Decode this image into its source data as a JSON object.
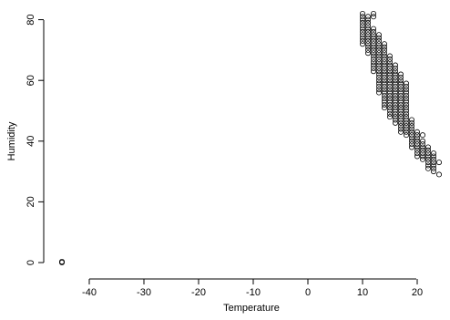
{
  "chart_data": {
    "type": "scatter",
    "xlabel": "Temperature",
    "ylabel": "Humidity",
    "xlim": [
      -48,
      25
    ],
    "ylim": [
      -3,
      85
    ],
    "x_ticks": [
      -40,
      -30,
      -20,
      -10,
      0,
      10,
      20
    ],
    "y_ticks": [
      0,
      20,
      40,
      60,
      80
    ],
    "grid": false,
    "legend": "none",
    "marker": "open-circle",
    "series": [
      {
        "points": [
          [
            -45,
            0
          ],
          [
            -45,
            0.3
          ],
          [
            10,
            82
          ],
          [
            10,
            81
          ],
          [
            10,
            80
          ],
          [
            10,
            79
          ],
          [
            10,
            78
          ],
          [
            10,
            77
          ],
          [
            10,
            76
          ],
          [
            10,
            75
          ],
          [
            10,
            74
          ],
          [
            10,
            73
          ],
          [
            10,
            72
          ],
          [
            11,
            81
          ],
          [
            11,
            80
          ],
          [
            11,
            79
          ],
          [
            11,
            78
          ],
          [
            11,
            77
          ],
          [
            11,
            76
          ],
          [
            11,
            75
          ],
          [
            11,
            74
          ],
          [
            11,
            73
          ],
          [
            11,
            72
          ],
          [
            11,
            71
          ],
          [
            11,
            70
          ],
          [
            11,
            69
          ],
          [
            12,
            82
          ],
          [
            12,
            81
          ],
          [
            12,
            77
          ],
          [
            12,
            76
          ],
          [
            12,
            75
          ],
          [
            12,
            74
          ],
          [
            12,
            73
          ],
          [
            12,
            72
          ],
          [
            12,
            71
          ],
          [
            12,
            70
          ],
          [
            12,
            69
          ],
          [
            12,
            68
          ],
          [
            12,
            67
          ],
          [
            12,
            66
          ],
          [
            12,
            65
          ],
          [
            12,
            64
          ],
          [
            12,
            63
          ],
          [
            13,
            75
          ],
          [
            13,
            74
          ],
          [
            13,
            73
          ],
          [
            13,
            72
          ],
          [
            13,
            71
          ],
          [
            13,
            70
          ],
          [
            13,
            69
          ],
          [
            13,
            68
          ],
          [
            13,
            67
          ],
          [
            13,
            66
          ],
          [
            13,
            65
          ],
          [
            13,
            64
          ],
          [
            13,
            63
          ],
          [
            13,
            62
          ],
          [
            13,
            61
          ],
          [
            13,
            60
          ],
          [
            13,
            59
          ],
          [
            13,
            58
          ],
          [
            13,
            57
          ],
          [
            13,
            56
          ],
          [
            14,
            72
          ],
          [
            14,
            71
          ],
          [
            14,
            70
          ],
          [
            14,
            69
          ],
          [
            14,
            68
          ],
          [
            14,
            67
          ],
          [
            14,
            66
          ],
          [
            14,
            65
          ],
          [
            14,
            64
          ],
          [
            14,
            63
          ],
          [
            14,
            62
          ],
          [
            14,
            61
          ],
          [
            14,
            60
          ],
          [
            14,
            59
          ],
          [
            14,
            58
          ],
          [
            14,
            57
          ],
          [
            14,
            56
          ],
          [
            14,
            55
          ],
          [
            14,
            54
          ],
          [
            14,
            53
          ],
          [
            14,
            52
          ],
          [
            14,
            51
          ],
          [
            15,
            68
          ],
          [
            15,
            67
          ],
          [
            15,
            66
          ],
          [
            15,
            65
          ],
          [
            15,
            64
          ],
          [
            15,
            63
          ],
          [
            15,
            62
          ],
          [
            15,
            61
          ],
          [
            15,
            60
          ],
          [
            15,
            59
          ],
          [
            15,
            58
          ],
          [
            15,
            57
          ],
          [
            15,
            56
          ],
          [
            15,
            55
          ],
          [
            15,
            54
          ],
          [
            15,
            53
          ],
          [
            15,
            52
          ],
          [
            15,
            51
          ],
          [
            15,
            50
          ],
          [
            15,
            49
          ],
          [
            15,
            48
          ],
          [
            16,
            65
          ],
          [
            16,
            64
          ],
          [
            16,
            63
          ],
          [
            16,
            62
          ],
          [
            16,
            61
          ],
          [
            16,
            60
          ],
          [
            16,
            59
          ],
          [
            16,
            58
          ],
          [
            16,
            57
          ],
          [
            16,
            56
          ],
          [
            16,
            55
          ],
          [
            16,
            54
          ],
          [
            16,
            53
          ],
          [
            16,
            52
          ],
          [
            16,
            51
          ],
          [
            16,
            50
          ],
          [
            16,
            49
          ],
          [
            16,
            48
          ],
          [
            16,
            47
          ],
          [
            16,
            46
          ],
          [
            17,
            62
          ],
          [
            17,
            61
          ],
          [
            17,
            60
          ],
          [
            17,
            59
          ],
          [
            17,
            58
          ],
          [
            17,
            57
          ],
          [
            17,
            56
          ],
          [
            17,
            55
          ],
          [
            17,
            54
          ],
          [
            17,
            53
          ],
          [
            17,
            52
          ],
          [
            17,
            51
          ],
          [
            17,
            50
          ],
          [
            17,
            49
          ],
          [
            17,
            48
          ],
          [
            17,
            47
          ],
          [
            17,
            46
          ],
          [
            17,
            45
          ],
          [
            17,
            44
          ],
          [
            17,
            43
          ],
          [
            18,
            59
          ],
          [
            18,
            58
          ],
          [
            18,
            57
          ],
          [
            18,
            56
          ],
          [
            18,
            55
          ],
          [
            18,
            54
          ],
          [
            18,
            53
          ],
          [
            18,
            52
          ],
          [
            18,
            51
          ],
          [
            18,
            50
          ],
          [
            18,
            49
          ],
          [
            18,
            48
          ],
          [
            18,
            47
          ],
          [
            18,
            46
          ],
          [
            18,
            45
          ],
          [
            18,
            44
          ],
          [
            18,
            43
          ],
          [
            18,
            42
          ],
          [
            19,
            47
          ],
          [
            19,
            46
          ],
          [
            19,
            45
          ],
          [
            19,
            44
          ],
          [
            19,
            43
          ],
          [
            19,
            42
          ],
          [
            19,
            41
          ],
          [
            19,
            40
          ],
          [
            19,
            39
          ],
          [
            19,
            38
          ],
          [
            20,
            43
          ],
          [
            20,
            42
          ],
          [
            20,
            41
          ],
          [
            20,
            40
          ],
          [
            20,
            39
          ],
          [
            20,
            38
          ],
          [
            20,
            37
          ],
          [
            20,
            36
          ],
          [
            20,
            35
          ],
          [
            21,
            42
          ],
          [
            21,
            40
          ],
          [
            21,
            39
          ],
          [
            21,
            38
          ],
          [
            21,
            37
          ],
          [
            21,
            36
          ],
          [
            21,
            35
          ],
          [
            21,
            34
          ],
          [
            22,
            38
          ],
          [
            22,
            37
          ],
          [
            22,
            36
          ],
          [
            22,
            35
          ],
          [
            22,
            34
          ],
          [
            22,
            33
          ],
          [
            22,
            32
          ],
          [
            22,
            31
          ],
          [
            23,
            36
          ],
          [
            23,
            35
          ],
          [
            23,
            34
          ],
          [
            23,
            33
          ],
          [
            23,
            32
          ],
          [
            23,
            31
          ],
          [
            23,
            30
          ],
          [
            24,
            33
          ],
          [
            24,
            29
          ]
        ]
      }
    ]
  }
}
